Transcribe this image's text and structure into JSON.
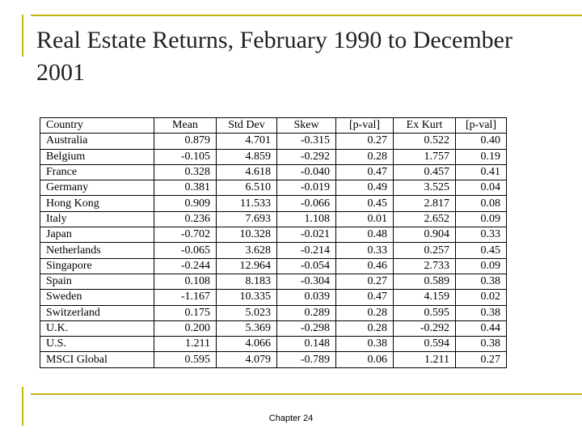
{
  "title": "Real Estate Returns, February 1990 to December 2001",
  "table": {
    "headers": [
      "Country",
      "Mean",
      "Std Dev",
      "Skew",
      "[p-val]",
      "Ex Kurt",
      "[p-val]"
    ],
    "rows": [
      [
        "Australia",
        "0.879",
        "4.701",
        "-0.315",
        "0.27",
        "0.522",
        "0.40"
      ],
      [
        "Belgium",
        "-0.105",
        "4.859",
        "-0.292",
        "0.28",
        "1.757",
        "0.19"
      ],
      [
        "France",
        "0.328",
        "4.618",
        "-0.040",
        "0.47",
        "0.457",
        "0.41"
      ],
      [
        "Germany",
        "0.381",
        "6.510",
        "-0.019",
        "0.49",
        "3.525",
        "0.04"
      ],
      [
        "Hong Kong",
        "0.909",
        "11.533",
        "-0.066",
        "0.45",
        "2.817",
        "0.08"
      ],
      [
        "Italy",
        "0.236",
        "7.693",
        "1.108",
        "0.01",
        "2.652",
        "0.09"
      ],
      [
        "Japan",
        "-0.702",
        "10.328",
        "-0.021",
        "0.48",
        "0.904",
        "0.33"
      ],
      [
        "Netherlands",
        "-0.065",
        "3.628",
        "-0.214",
        "0.33",
        "0.257",
        "0.45"
      ],
      [
        "Singapore",
        "-0.244",
        "12.964",
        "-0.054",
        "0.46",
        "2.733",
        "0.09"
      ],
      [
        "Spain",
        "0.108",
        "8.183",
        "-0.304",
        "0.27",
        "0.589",
        "0.38"
      ],
      [
        "Sweden",
        "-1.167",
        "10.335",
        "0.039",
        "0.47",
        "4.159",
        "0.02"
      ],
      [
        "Switzerland",
        "0.175",
        "5.023",
        "0.289",
        "0.28",
        "0.595",
        "0.38"
      ],
      [
        "U.K.",
        "0.200",
        "5.369",
        "-0.298",
        "0.28",
        "-0.292",
        "0.44"
      ],
      [
        "U.S.",
        "1.211",
        "4.066",
        "0.148",
        "0.38",
        "0.594",
        "0.38"
      ],
      [
        "MSCI Global",
        "0.595",
        "4.079",
        "-0.789",
        "0.06",
        "1.211",
        "0.27"
      ]
    ]
  },
  "footer": "Chapter 24",
  "colors": {
    "accent_rule": "#c8b40c",
    "title_text": "#222222"
  }
}
